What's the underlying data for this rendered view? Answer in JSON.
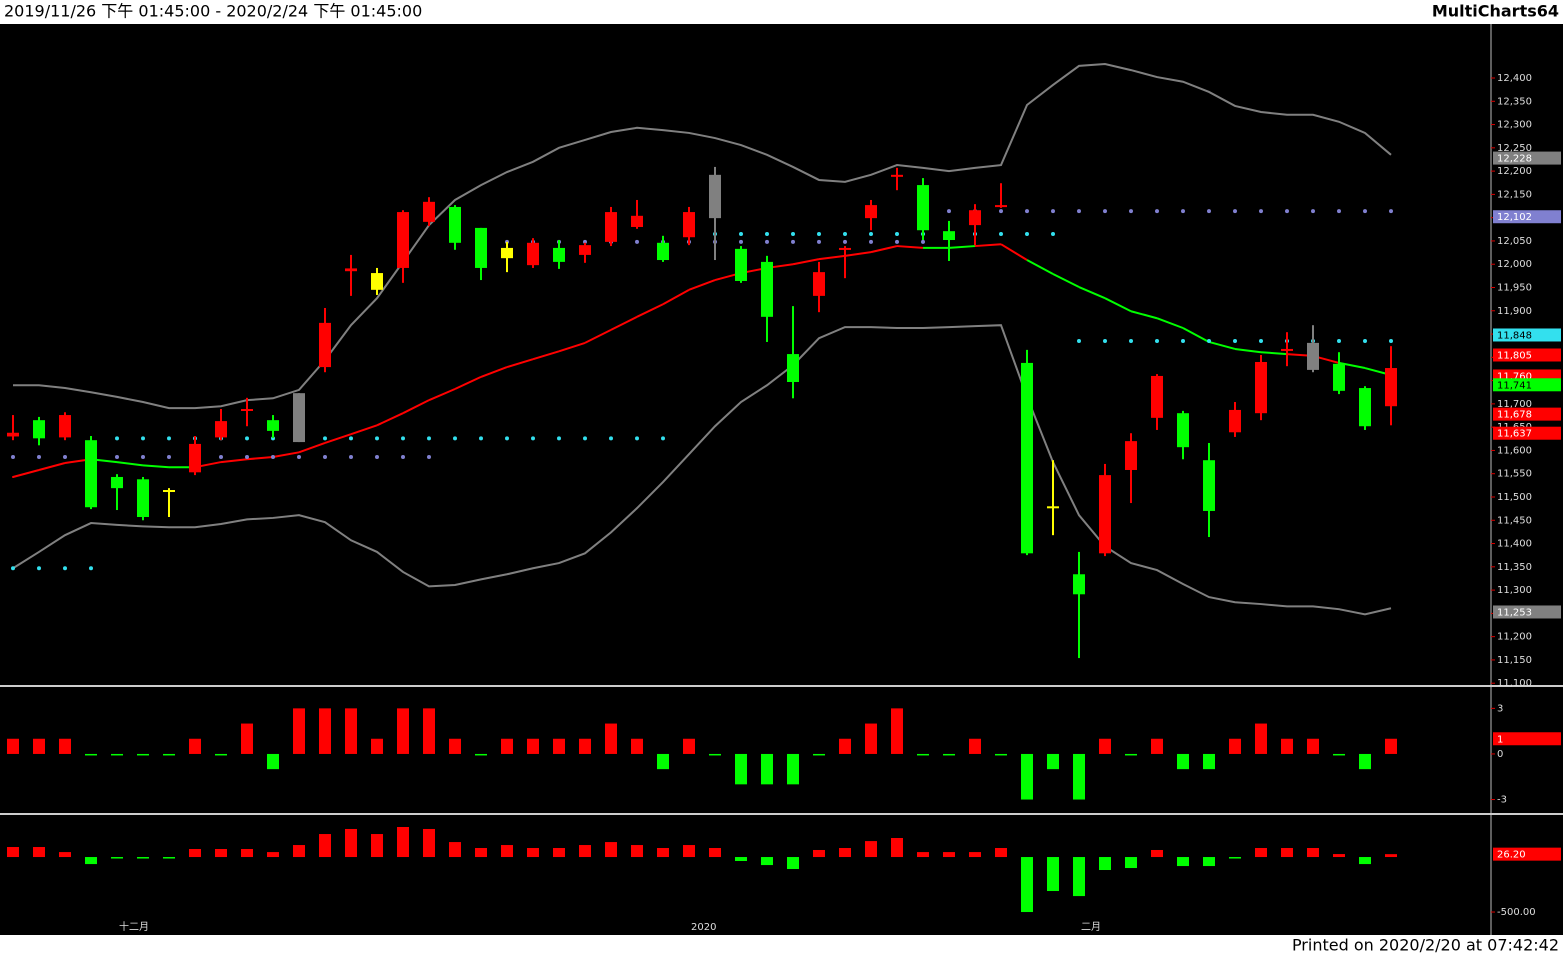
{
  "header": {
    "range": "2019/11/26 下午 01:45:00 - 2020/2/24 下午 01:45:00",
    "brand": "MultiCharts64"
  },
  "footer": "Printed on 2020/2/20 at 07:42:42",
  "chart_data": [
    {
      "type": "candlestick",
      "categories": [
        null,
        null,
        null,
        null,
        "十二月",
        null,
        null,
        null,
        null,
        null,
        null,
        null,
        null,
        null,
        null,
        null,
        null,
        null,
        null,
        null,
        null,
        null,
        null,
        null,
        null,
        null,
        "2020",
        null,
        null,
        null,
        null,
        null,
        null,
        null,
        null,
        null,
        null,
        null,
        null,
        null,
        null,
        "二月",
        null,
        null,
        null,
        null,
        null,
        null,
        null,
        null,
        null,
        null,
        null,
        null
      ],
      "open": [
        11630,
        11665,
        11628,
        11622,
        11543,
        11538,
        11515,
        11553,
        11628,
        11685,
        11665,
        11723,
        11779,
        11985,
        11981,
        11992,
        12091,
        12123,
        12078,
        12035,
        11998,
        12035,
        12020,
        12048,
        12080,
        12046,
        12058,
        12192,
        12033,
        12005,
        11807,
        11932,
        12031,
        12099,
        12190,
        12170,
        12071,
        12084,
        12125,
        11788,
        11480,
        11334,
        11379,
        11558,
        11670,
        11680,
        11579,
        11639,
        11680,
        11814,
        11831,
        11786,
        11734,
        11695
      ],
      "high": [
        11676,
        11672,
        11682,
        11631,
        11549,
        11543,
        11519,
        11631,
        11689,
        11713,
        11676,
        11723,
        11906,
        12020,
        11992,
        12116,
        12144,
        12127,
        12078,
        12048,
        12056,
        12052,
        12046,
        12123,
        12138,
        12061,
        12123,
        12209,
        12039,
        12018,
        11910,
        12005,
        12039,
        12138,
        12207,
        12185,
        12093,
        12129,
        12174,
        11816,
        11579,
        11382,
        11571,
        11637,
        11764,
        11685,
        11616,
        11704,
        11805,
        11854,
        11869,
        11811,
        11738,
        11824
      ],
      "low": [
        11622,
        11611,
        11622,
        11474,
        11472,
        11450,
        11457,
        11547,
        11622,
        11652,
        11627,
        11618,
        11768,
        11932,
        11934,
        11960,
        12082,
        12031,
        11966,
        11983,
        11992,
        11990,
        12003,
        12039,
        12076,
        12005,
        12041,
        12009,
        11960,
        11833,
        11712,
        11897,
        11970,
        12073,
        12159,
        12052,
        12007,
        12041,
        12121,
        11375,
        11418,
        11154,
        11373,
        11487,
        11644,
        11581,
        11414,
        11629,
        11665,
        11781,
        11768,
        11721,
        11644,
        11654
      ],
      "close": [
        11638,
        11626,
        11676,
        11478,
        11519,
        11457,
        11513,
        11614,
        11663,
        11689,
        11642,
        11618,
        11874,
        11991,
        11945,
        12112,
        12134,
        12046,
        11992,
        12013,
        12046,
        12005,
        12041,
        12112,
        12104,
        12009,
        12112,
        12099,
        11964,
        11887,
        11747,
        11983,
        12035,
        12127,
        12192,
        12073,
        12052,
        12116,
        12127,
        11379,
        11478,
        11291,
        11547,
        11620,
        11760,
        11607,
        11470,
        11687,
        11790,
        11818,
        11773,
        11728,
        11652,
        11777
      ],
      "colors": [
        "#ff0000",
        "#00ff00",
        "#ff0000",
        "#00ff00",
        "#00ff00",
        "#00ff00",
        "#ffff00",
        "#ff0000",
        "#ff0000",
        "#ff0000",
        "#00ff00",
        "#808080",
        "#ff0000",
        "#ff0000",
        "#ffff00",
        "#ff0000",
        "#ff0000",
        "#00ff00",
        "#00ff00",
        "#ffff00",
        "#ff0000",
        "#00ff00",
        "#ff0000",
        "#ff0000",
        "#ff0000",
        "#00ff00",
        "#ff0000",
        "#808080",
        "#00ff00",
        "#00ff00",
        "#00ff00",
        "#ff0000",
        "#ff0000",
        "#ff0000",
        "#ff0000",
        "#00ff00",
        "#00ff00",
        "#ff0000",
        "#ff0000",
        "#00ff00",
        "#ffff00",
        "#00ff00",
        "#ff0000",
        "#ff0000",
        "#ff0000",
        "#00ff00",
        "#00ff00",
        "#ff0000",
        "#ff0000",
        "#ff0000",
        "#808080",
        "#00ff00",
        "#00ff00",
        "#ff0000"
      ],
      "lines": [
        {
          "color": "#808080",
          "values": [
            11740,
            11740,
            11734,
            11725,
            11715,
            11704,
            11691,
            11691,
            11695,
            11708,
            11712,
            11730,
            11794,
            11869,
            11927,
            12005,
            12084,
            12138,
            12170,
            12198,
            12220,
            12250,
            12267,
            12284,
            12293,
            12288,
            12282,
            12271,
            12256,
            12235,
            12209,
            12181,
            12177,
            12192,
            12213,
            12207,
            12200,
            12207,
            12213,
            12342,
            12385,
            12426,
            12430,
            12417,
            12402,
            12392,
            12370,
            12340,
            12327,
            12321,
            12321,
            12306,
            12282,
            12235
          ]
        },
        {
          "color": "#808080",
          "values": [
            11347,
            11382,
            11418,
            11444,
            11440,
            11437,
            11435,
            11435,
            11442,
            11452,
            11455,
            11461,
            11446,
            11407,
            11382,
            11339,
            11308,
            11311,
            11323,
            11334,
            11347,
            11358,
            11379,
            11424,
            11476,
            11532,
            11592,
            11652,
            11704,
            11740,
            11783,
            11841,
            11865,
            11865,
            11863,
            11863,
            11865,
            11867,
            11869,
            11715,
            11575,
            11461,
            11394,
            11358,
            11343,
            11313,
            11285,
            11274,
            11270,
            11265,
            11265,
            11259,
            11248,
            11261
          ]
        }
      ],
      "middle": {
        "values": [
          11543,
          11558,
          11573,
          11581,
          11575,
          11568,
          11564,
          11564,
          11575,
          11581,
          11586,
          11596,
          11616,
          11635,
          11654,
          11680,
          11708,
          11732,
          11758,
          11779,
          11796,
          11813,
          11831,
          11859,
          11887,
          11914,
          11945,
          11966,
          11981,
          11992,
          12000,
          12011,
          12018,
          12026,
          12039,
          12035,
          12035,
          12039,
          12043,
          12009,
          11979,
          11951,
          11927,
          11899,
          11884,
          11863,
          11833,
          11818,
          11811,
          11807,
          11803,
          11788,
          11777,
          11762
        ],
        "segment_colors": [
          "#ff0000",
          "#ff0000",
          "#ff0000",
          "#ff0000",
          "#00ff00",
          "#00ff00",
          "#00ff00",
          "#00ff00",
          "#ff0000",
          "#ff0000",
          "#ff0000",
          "#ff0000",
          "#ff0000",
          "#ff0000",
          "#ff0000",
          "#ff0000",
          "#ff0000",
          "#ff0000",
          "#ff0000",
          "#ff0000",
          "#ff0000",
          "#ff0000",
          "#ff0000",
          "#ff0000",
          "#ff0000",
          "#ff0000",
          "#ff0000",
          "#ff0000",
          "#ff0000",
          "#ff0000",
          "#ff0000",
          "#ff0000",
          "#ff0000",
          "#ff0000",
          "#ff0000",
          "#ff0000",
          "#00ff00",
          "#00ff00",
          "#ff0000",
          "#ff0000",
          "#00ff00",
          "#00ff00",
          "#00ff00",
          "#00ff00",
          "#00ff00",
          "#00ff00",
          "#00ff00",
          "#00ff00",
          "#00ff00",
          "#00ff00",
          "#ff0000",
          "#ff0000",
          "#00ff00",
          "#00ff00"
        ]
      },
      "dots": [
        {
          "color": "#33e0ee",
          "values": [
            11347,
            11347,
            11347,
            11347,
            11626,
            11626,
            11626,
            11626,
            11626,
            11626,
            11626,
            11626,
            11626,
            11626,
            11626,
            11626,
            11626,
            11626,
            11626,
            11626,
            11626,
            11626,
            11626,
            11626,
            11626,
            11626,
            12065,
            12065,
            12065,
            12065,
            12065,
            12065,
            12065,
            12065,
            12065,
            12065,
            12065,
            12065,
            12065,
            12065,
            12065,
            11835,
            11835,
            11835,
            11835,
            11835,
            11835,
            11835,
            11835,
            11835,
            11835,
            11835,
            11835,
            11835
          ]
        },
        {
          "color": "#8080d0",
          "values": [
            11586,
            11586,
            11586,
            11586,
            11586,
            11586,
            11586,
            11586,
            11586,
            11586,
            11586,
            11586,
            11586,
            11586,
            11586,
            11586,
            11586,
            null,
            12048,
            12048,
            12048,
            12048,
            12048,
            12048,
            12048,
            12048,
            12048,
            12048,
            12048,
            12048,
            12048,
            12048,
            12048,
            12048,
            12048,
            12048,
            12114,
            12114,
            12114,
            12114,
            12114,
            12114,
            12114,
            12114,
            12114,
            12114,
            12114,
            12114,
            12114,
            12114,
            12114,
            12114,
            12114,
            12114
          ]
        }
      ],
      "ylim": [
        11094,
        12516
      ],
      "yticks": [
        {
          "value": 11100,
          "label": "11,100"
        },
        {
          "value": 11150,
          "label": "11,150"
        },
        {
          "value": 11200,
          "label": "11,200"
        },
        {
          "value": 11250,
          "label": "11,250"
        },
        {
          "value": 11300,
          "label": "11,300"
        },
        {
          "value": 11350,
          "label": "11,350"
        },
        {
          "value": 11400,
          "label": "11,400"
        },
        {
          "value": 11450,
          "label": "11,450"
        },
        {
          "value": 11500,
          "label": "11,500"
        },
        {
          "value": 11550,
          "label": "11,550"
        },
        {
          "value": 11600,
          "label": "11,600"
        },
        {
          "value": 11650,
          "label": "11,650"
        },
        {
          "value": 11700,
          "label": "11,700"
        },
        {
          "value": 11750,
          "label": "11,750"
        },
        {
          "value": 11800,
          "label": "11,800"
        },
        {
          "value": 11850,
          "label": "11,850"
        },
        {
          "value": 11900,
          "label": "11,900"
        },
        {
          "value": 11950,
          "label": "11,950"
        },
        {
          "value": 12000,
          "label": "12,000"
        },
        {
          "value": 12050,
          "label": "12,050"
        },
        {
          "value": 12100,
          "label": "12,100"
        },
        {
          "value": 12150,
          "label": "12,150"
        },
        {
          "value": 12200,
          "label": "12,200"
        },
        {
          "value": 12250,
          "label": "12,250"
        },
        {
          "value": 12300,
          "label": "12,300"
        },
        {
          "value": 12350,
          "label": "12,350"
        },
        {
          "value": 12400,
          "label": "12,400"
        }
      ],
      "flags": [
        {
          "value": 12228,
          "label": "12,228",
          "color": "#808080"
        },
        {
          "value": 12102,
          "label": "12,102",
          "color": "#8080d0"
        },
        {
          "value": 11848,
          "label": "11,848",
          "color": "#33e0ee"
        },
        {
          "value": 11805,
          "label": "11,805",
          "color": "#ff0000"
        },
        {
          "value": 11760,
          "label": "11,760",
          "color": "#ff0000"
        },
        {
          "value": 11741,
          "label": "11,741",
          "color": "#00ff00"
        },
        {
          "value": 11678,
          "label": "11,678",
          "color": "#ff0000"
        },
        {
          "value": 11637,
          "label": "11,637",
          "color": "#ff0000"
        },
        {
          "value": 11253,
          "label": "11,253",
          "color": "#808080"
        }
      ]
    },
    {
      "type": "bar",
      "up_color": "#ff0000",
      "down_color": "#00ff00",
      "values": [
        1,
        1,
        1,
        0,
        0,
        0,
        0,
        1,
        0,
        2,
        -1,
        3,
        3,
        3,
        1,
        3,
        3,
        1,
        0,
        1,
        1,
        1,
        1,
        2,
        1,
        -1,
        1,
        0,
        -2,
        -2,
        -2,
        0,
        1,
        2,
        3,
        0,
        0,
        1,
        0,
        -3,
        -1,
        -3,
        1,
        0,
        1,
        -1,
        -1,
        1,
        2,
        1,
        1,
        0,
        -1,
        1
      ],
      "ylim": [
        -3.82,
        4.34
      ],
      "yticks": [
        3,
        0,
        -3
      ],
      "flags": [
        {
          "value": 1,
          "color": "#ff0000"
        }
      ]
    },
    {
      "type": "bar",
      "up_color": "#ff0000",
      "down_color": "#00ff00",
      "values": [
        91,
        91,
        45,
        -64,
        -10,
        -10,
        -10,
        73,
        73,
        73,
        45,
        109,
        209,
        255,
        209,
        273,
        255,
        136,
        82,
        109,
        82,
        82,
        109,
        136,
        109,
        82,
        109,
        82,
        -36,
        -73,
        -109,
        64,
        82,
        145,
        173,
        45,
        45,
        45,
        82,
        -500,
        -309,
        -355,
        -118,
        -100,
        64,
        -82,
        -82,
        0,
        82,
        82,
        82,
        27,
        -64,
        26.2
      ],
      "ylim": [
        -527,
        373
      ],
      "yticks": [
        {
          "value": -500,
          "label": "-500.00"
        }
      ],
      "flags": [
        {
          "value": 26.2,
          "label": "26.20",
          "color": "#ff0000"
        }
      ]
    }
  ]
}
